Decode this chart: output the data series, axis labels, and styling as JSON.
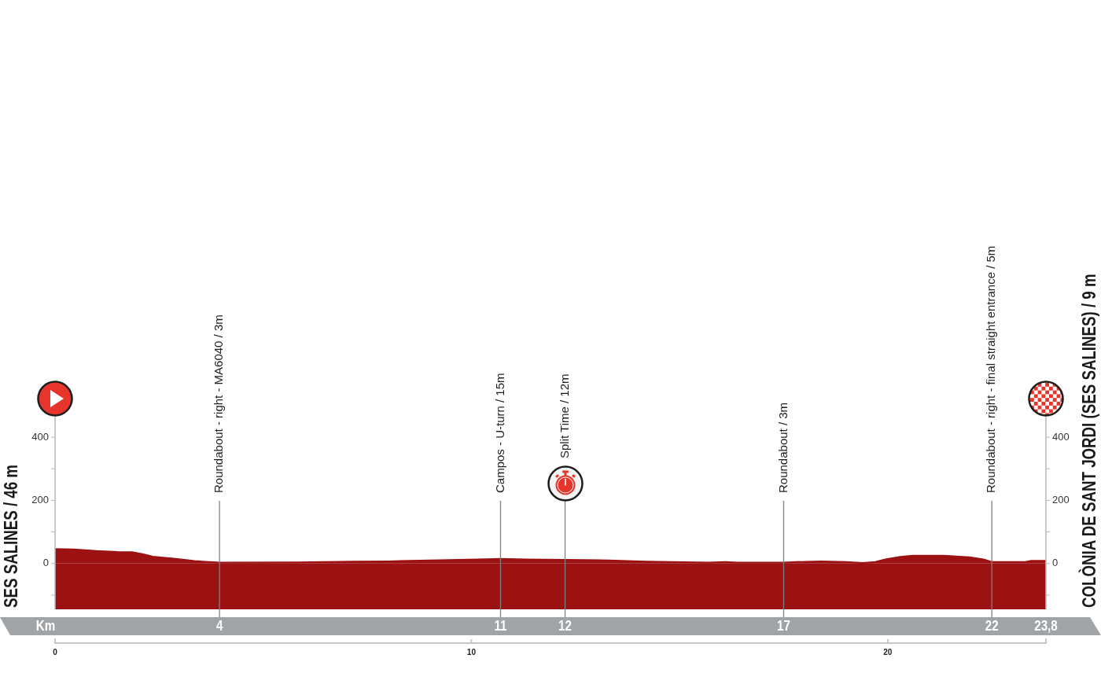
{
  "chart_data": {
    "type": "area",
    "ylabel": "SES SALINES / 46 m",
    "y2label": "COLÒNIA DE SANT JORDI (SES SALINES) / 9 m",
    "xlabel": "Km",
    "x": [
      0,
      0.45,
      1.0,
      1.5,
      1.85,
      2.1,
      2.35,
      2.9,
      3.35,
      3.7,
      3.95,
      5.8,
      7.2,
      8.0,
      9.0,
      10.15,
      10.7,
      11.3,
      12.25,
      13.3,
      14.2,
      15.7,
      16.1,
      16.4,
      17.5,
      17.8,
      18.4,
      19.0,
      19.4,
      19.7,
      19.96,
      20.3,
      20.6,
      21.35,
      21.97,
      22.3,
      22.5,
      23.3,
      23.45,
      23.8
    ],
    "values": [
      46,
      45,
      40,
      37,
      36,
      30,
      22,
      15,
      8,
      5,
      3,
      4,
      6,
      7,
      10,
      13,
      15,
      13,
      12,
      10,
      6,
      3,
      5,
      3,
      3,
      5,
      7,
      5,
      2,
      5,
      14,
      21,
      25,
      25,
      20,
      13,
      5,
      5,
      9,
      9
    ],
    "color": "#9c1212",
    "xlim": [
      0,
      23.8
    ],
    "xticks": [
      {
        "value": 3.95,
        "label": "4"
      },
      {
        "value": 10.7,
        "label": "11"
      },
      {
        "value": 12.25,
        "label": "12"
      },
      {
        "value": 17.5,
        "label": "17"
      },
      {
        "value": 22.5,
        "label": "22"
      },
      {
        "value": 23.8,
        "label": "23,8"
      }
    ],
    "x2lim": [
      0,
      23.8
    ],
    "x2ticks": [
      0,
      10,
      20
    ],
    "ylim": [
      -145,
      470
    ],
    "yticks": [
      {
        "value": -100,
        "label": null
      },
      0,
      {
        "value": 100,
        "label": null
      },
      200,
      {
        "value": 300,
        "label": null
      },
      400
    ],
    "y2lim": [
      -145,
      470
    ],
    "y2ticks": [
      {
        "value": -100,
        "label": null
      },
      0,
      {
        "value": 100,
        "label": null
      },
      200,
      {
        "value": 300,
        "label": null
      },
      400
    ],
    "bands": [
      {
        "axis": "y",
        "from": -145,
        "to": 0,
        "color": "#9c1212"
      }
    ],
    "ref_lines": [
      {
        "axis": "x",
        "value": 3.95,
        "label": "Roundabout - right - MA6040 / 3m",
        "color": "#808080"
      },
      {
        "axis": "x",
        "value": 10.7,
        "label": "Campos - U-turn / 15m",
        "color": "#808080"
      },
      {
        "axis": "x",
        "value": 12.25,
        "label": "Split Time / 12m",
        "color": "#808080"
      },
      {
        "axis": "x",
        "value": 17.5,
        "label": "Roundabout / 3m",
        "color": "#808080"
      },
      {
        "axis": "x",
        "value": 22.5,
        "label": "Roundabout - right - final straight entrance / 5m",
        "color": "#808080"
      }
    ]
  }
}
